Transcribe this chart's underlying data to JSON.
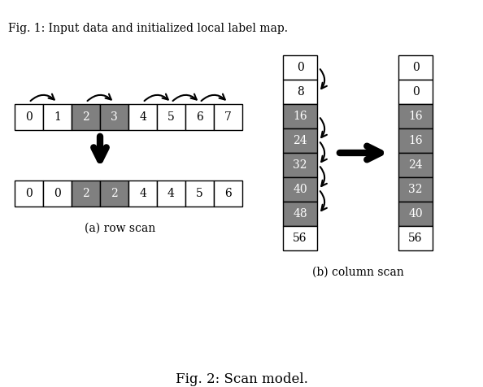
{
  "title": "Fig. 2: Scan model.",
  "fig_caption_top": "Fig. 1: Input data and initialized local label map.",
  "row_scan_label": "(a) row scan",
  "col_scan_label": "(b) column scan",
  "row_top_values": [
    0,
    1,
    2,
    3,
    4,
    5,
    6,
    7
  ],
  "row_top_colors": [
    "white",
    "white",
    "gray",
    "gray",
    "white",
    "white",
    "white",
    "white"
  ],
  "row_bottom_values": [
    0,
    0,
    2,
    2,
    4,
    4,
    5,
    6
  ],
  "row_bottom_colors": [
    "white",
    "white",
    "gray",
    "gray",
    "white",
    "white",
    "white",
    "white"
  ],
  "col_left_values": [
    0,
    8,
    16,
    24,
    32,
    40,
    48,
    56
  ],
  "col_left_colors": [
    "white",
    "white",
    "gray",
    "gray",
    "gray",
    "gray",
    "gray",
    "white"
  ],
  "col_right_values": [
    0,
    0,
    16,
    16,
    24,
    32,
    40,
    56
  ],
  "col_right_colors": [
    "white",
    "white",
    "gray",
    "gray",
    "gray",
    "gray",
    "gray",
    "white"
  ],
  "dark_gray": "#808080",
  "white": "#ffffff",
  "black": "#000000"
}
